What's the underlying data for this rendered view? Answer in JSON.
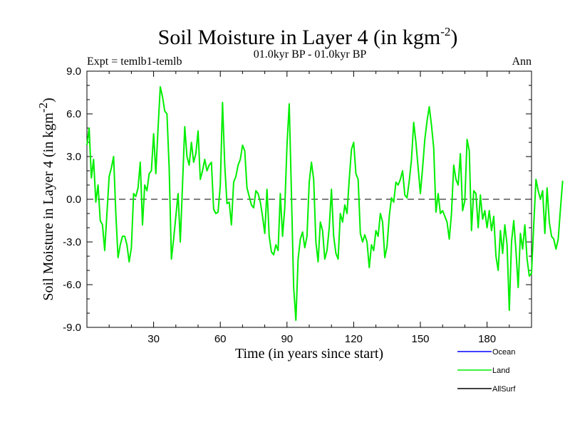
{
  "chart_data": {
    "type": "line",
    "title": "Soil Moisture in Layer 4 (in kgm",
    "title_sup": "-2",
    "title_close": ")",
    "subtitle_left": "Expt = temlb1-temlb",
    "subtitle_center": "01.0kyr BP - 01.0kyr BP",
    "subtitle_right": "Ann",
    "xlabel": "Time (in years since start)",
    "ylabel": "Soil Moisture in Layer 4 (in kgm",
    "ylabel_sup": "-2",
    "ylabel_close": ")",
    "xlim": [
      0,
      200
    ],
    "ylim": [
      -9,
      9
    ],
    "x_ticks": [
      30,
      60,
      90,
      120,
      150,
      180
    ],
    "x_tick_labels": [
      "30",
      "60",
      "90",
      "120",
      "150",
      "180"
    ],
    "y_ticks": [
      -9,
      -6,
      -3,
      0,
      3,
      6,
      9
    ],
    "y_tick_labels": [
      "-9.0",
      "-6.0",
      "-3.0",
      "0.0",
      "3.0",
      "6.0",
      "9.0"
    ],
    "zero_line": true,
    "legend": [
      {
        "name": "Ocean",
        "color": "#0000ff"
      },
      {
        "name": "Land",
        "color": "#00ee00"
      },
      {
        "name": "AllSurf",
        "color": "#000000"
      }
    ],
    "series": [
      {
        "name": "Land",
        "color": "#00ee00",
        "x_start": 0,
        "x_step": 1,
        "values": [
          3.8,
          5.0,
          1.5,
          2.8,
          -0.2,
          1.0,
          -1.5,
          -1.8,
          -3.6,
          -1.0,
          1.6,
          2.2,
          3.0,
          -1.0,
          -4.1,
          -3.2,
          -2.6,
          -2.6,
          -3.2,
          -4.4,
          -3.4,
          0.4,
          0.2,
          0.8,
          2.6,
          -1.8,
          1.0,
          0.6,
          1.8,
          2.0,
          4.6,
          1.8,
          5.0,
          7.9,
          7.2,
          6.2,
          6.0,
          2.2,
          -4.2,
          -2.8,
          -1.2,
          0.4,
          -3.0,
          1.0,
          5.1,
          3.0,
          2.4,
          4.0,
          2.6,
          3.2,
          4.8,
          1.4,
          2.0,
          2.8,
          2.0,
          2.4,
          2.6,
          -0.7,
          -1.0,
          -0.9,
          1.0,
          6.8,
          2.4,
          -0.3,
          -0.2,
          -1.8,
          1.2,
          1.6,
          2.4,
          2.8,
          3.8,
          3.4,
          0.8,
          0.2,
          -0.4,
          -0.6,
          0.6,
          0.4,
          -0.2,
          -1.2,
          -2.4,
          0.7,
          -2.6,
          -3.7,
          -3.9,
          -3.2,
          -3.6,
          0.4,
          -2.6,
          -0.6,
          3.8,
          6.7,
          0.4,
          -6.2,
          -8.5,
          -4.2,
          -2.8,
          -2.3,
          -3.4,
          -2.6,
          1.2,
          2.6,
          1.4,
          -3.0,
          -4.4,
          -1.6,
          -2.2,
          -4.2,
          -3.6,
          -2.0,
          0.7,
          -2.6,
          -3.8,
          -4.2,
          -1.0,
          -1.6,
          -0.4,
          -1.0,
          1.4,
          3.5,
          4.0,
          1.8,
          1.4,
          -2.4,
          -3.0,
          -2.5,
          -3.0,
          -4.8,
          -3.2,
          -3.6,
          -2.2,
          -2.6,
          -1.0,
          -1.6,
          -4.1,
          -3.3,
          -1.2,
          0.1,
          -0.2,
          1.2,
          1.0,
          1.4,
          2.0,
          0.3,
          0.1,
          1.3,
          2.8,
          5.4,
          4.0,
          2.2,
          0.4,
          2.2,
          4.2,
          5.5,
          6.5,
          5.2,
          3.6,
          -0.9,
          0.4,
          -1.0,
          -0.8,
          -1.2,
          -1.6,
          -2.8,
          -1.0,
          2.4,
          1.4,
          1.0,
          3.2,
          -0.8,
          -0.1,
          4.2,
          3.4,
          -2.2,
          0.6,
          0.4,
          -2.0,
          0.3,
          -1.4,
          -0.8,
          -2.0,
          -0.8,
          -2.2,
          -1.2,
          -4.0,
          -5.0,
          -2.2,
          -3.8,
          -1.8,
          -3.2,
          -7.8,
          -3.0,
          -1.5,
          -3.6,
          -6.2,
          -2.4,
          -3.5,
          -1.8,
          -4.2,
          -5.4,
          -5.2,
          -1.8,
          1.4,
          0.6,
          0.0,
          0.6,
          -2.4,
          0.8,
          -1.6,
          -2.6,
          -2.8,
          -3.5,
          -2.8,
          -0.7,
          1.3
        ]
      }
    ]
  }
}
